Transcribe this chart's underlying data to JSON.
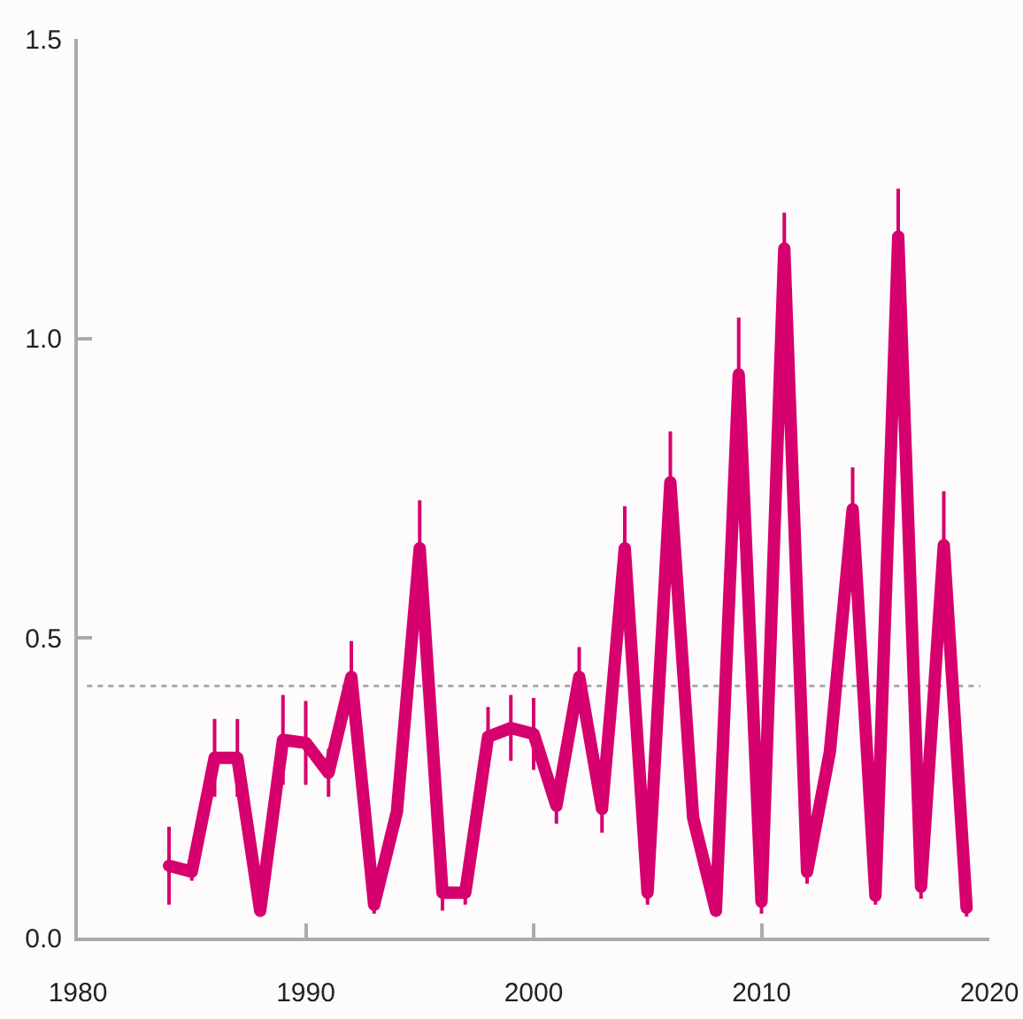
{
  "chart_data": {
    "type": "line",
    "x": [
      1984,
      1985,
      1986,
      1987,
      1988,
      1989,
      1990,
      1991,
      1992,
      1993,
      1994,
      1995,
      1996,
      1997,
      1998,
      1999,
      2000,
      2001,
      2002,
      2003,
      2004,
      2005,
      2006,
      2007,
      2008,
      2009,
      2010,
      2011,
      2012,
      2013,
      2014,
      2015,
      2016,
      2017,
      2018,
      2019
    ],
    "series": [
      {
        "color": "#d6006e",
        "values": [
          0.12,
          0.11,
          0.3,
          0.3,
          0.045,
          0.33,
          0.325,
          0.275,
          0.435,
          0.055,
          0.21,
          0.65,
          0.075,
          0.075,
          0.335,
          0.35,
          0.34,
          0.22,
          0.435,
          0.215,
          0.65,
          0.075,
          0.76,
          0.2,
          0.045,
          0.94,
          0.06,
          1.15,
          0.11,
          0.31,
          0.715,
          0.07,
          1.17,
          0.085,
          0.655,
          0.05
        ],
        "errors": [
          0.065,
          0.015,
          0.065,
          0.065,
          0.01,
          0.075,
          0.07,
          0.04,
          0.06,
          0.015,
          0.02,
          0.08,
          0.03,
          0.02,
          0.05,
          0.055,
          0.06,
          0.03,
          0.05,
          0.04,
          0.07,
          0.02,
          0.085,
          0.02,
          0.01,
          0.095,
          0.02,
          0.06,
          0.02,
          0.03,
          0.07,
          0.015,
          0.08,
          0.02,
          0.09,
          0.015
        ]
      }
    ],
    "xlim": [
      1980,
      2020
    ],
    "xticks": [
      1980,
      1990,
      2000,
      2010,
      2020
    ],
    "ylim": [
      0,
      1.5
    ],
    "yticks": [
      {
        "value": 0,
        "label": "0.0"
      },
      {
        "value": 0.5,
        "label": "0.5"
      },
      {
        "value": 1,
        "label": "1.0"
      },
      {
        "value": 1.5,
        "label": "1.5"
      }
    ],
    "ref_lines": [
      {
        "axis": "y",
        "value": 0.42,
        "color": "#aaaaaa",
        "line_style": "dotted"
      }
    ],
    "grid": false,
    "marker": "none",
    "line_style": "solid"
  }
}
